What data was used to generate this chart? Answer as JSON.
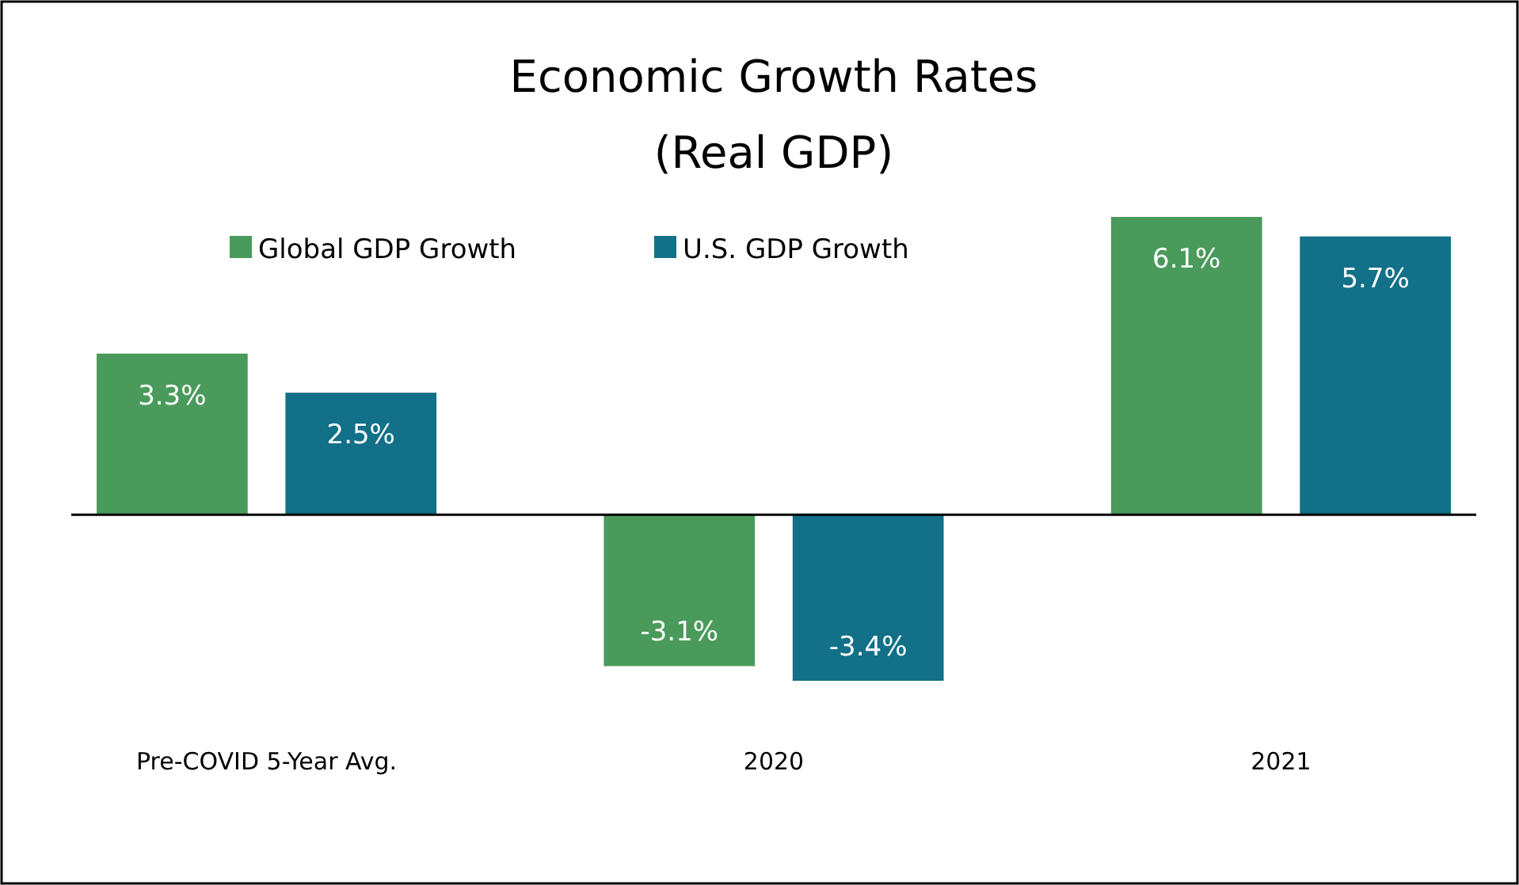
{
  "chart_data": {
    "type": "bar",
    "title": "Economic Growth Rates",
    "subtitle": "(Real GDP)",
    "categories": [
      "Pre-COVID 5-Year Avg.",
      "2020",
      "2021"
    ],
    "series": [
      {
        "name": "Global GDP Growth",
        "color": "#4a9a5c",
        "values": [
          3.3,
          -3.1,
          6.1
        ],
        "value_labels": [
          "3.3%",
          "-3.1%",
          "6.1%"
        ]
      },
      {
        "name": "U.S. GDP Growth",
        "color": "#127088",
        "values": [
          2.5,
          -3.4,
          5.7
        ],
        "value_labels": [
          "2.5%",
          "-3.4%",
          "5.7%"
        ]
      }
    ],
    "legend": "top left"
  }
}
